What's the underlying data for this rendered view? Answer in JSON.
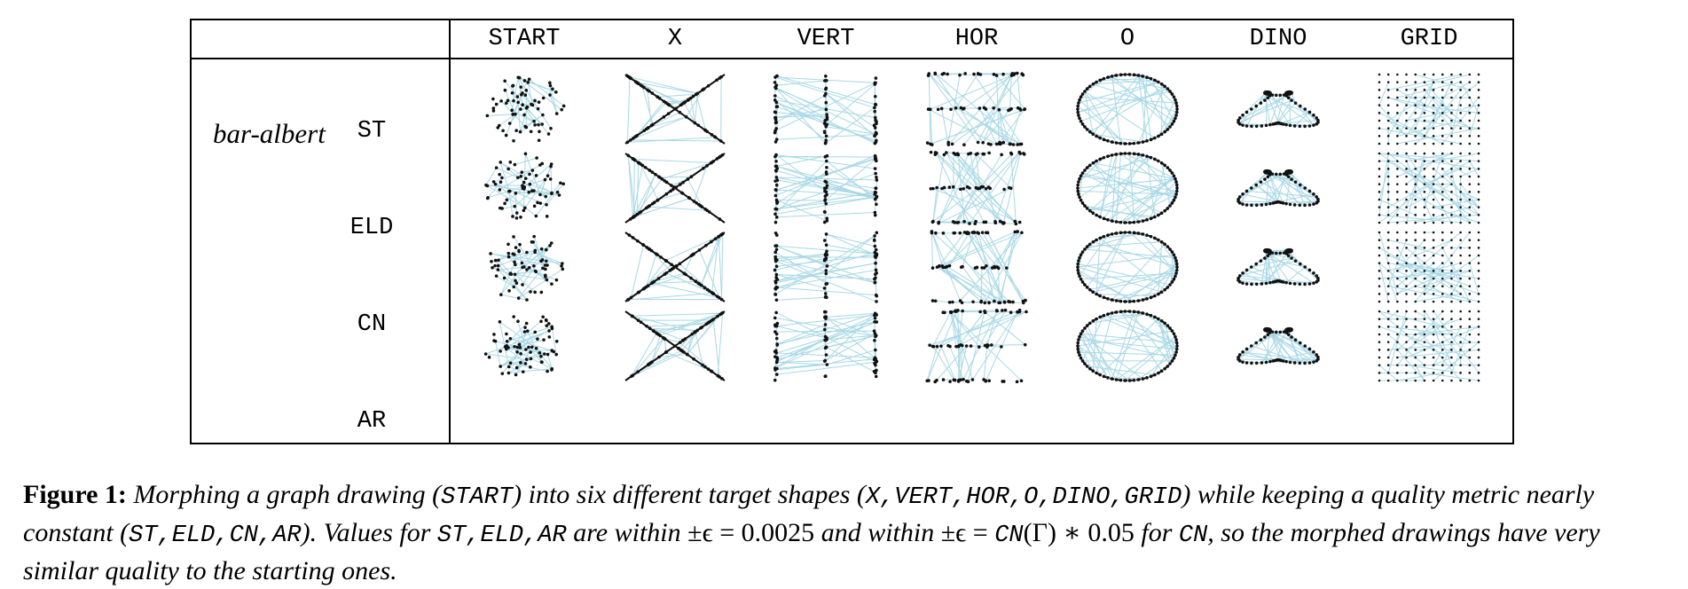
{
  "table": {
    "columns": [
      "START",
      "X",
      "VERT",
      "HOR",
      "O",
      "DINO",
      "GRID"
    ],
    "dataset": "bar-albert",
    "rows": [
      "ST",
      "ELD",
      "CN",
      "AR"
    ]
  },
  "caption": {
    "label": "Figure 1:",
    "t1": "Morphing a graph drawing (",
    "m_start": "START",
    "t2": ") into six different target shapes (",
    "m_x": "X",
    "c1": ",",
    "m_vert": "VERT",
    "c2": ",",
    "m_hor": "HOR",
    "c3": ",",
    "m_o": "O",
    "c4": ",",
    "m_dino": "DINO",
    "c5": ",",
    "m_grid": "GRID",
    "t3": ") while keeping a quality metric nearly constant (",
    "m_st": "ST",
    "c6": ",",
    "m_eld": "ELD",
    "c7": ",",
    "m_cn": "CN",
    "c8": ",",
    "m_ar": "AR",
    "t4": "). Values for ",
    "m_st2": "ST",
    "c9": ",",
    "m_eld2": "ELD",
    "c10": ",",
    "m_ar2": "AR",
    "t5": " are within ",
    "eq1": "±ϵ = 0.0025",
    "t6": " and within ",
    "eq2a": "±ϵ = ",
    "m_cn2": "CN",
    "eq2b": "(Γ) ∗ 0.05",
    "t7": " for ",
    "m_cn3": "CN",
    "t8": ", so the morphed drawings have very similar quality to the starting ones."
  },
  "colors": {
    "edge": "#a8d8e6",
    "node": "#111111",
    "border": "#000000"
  }
}
